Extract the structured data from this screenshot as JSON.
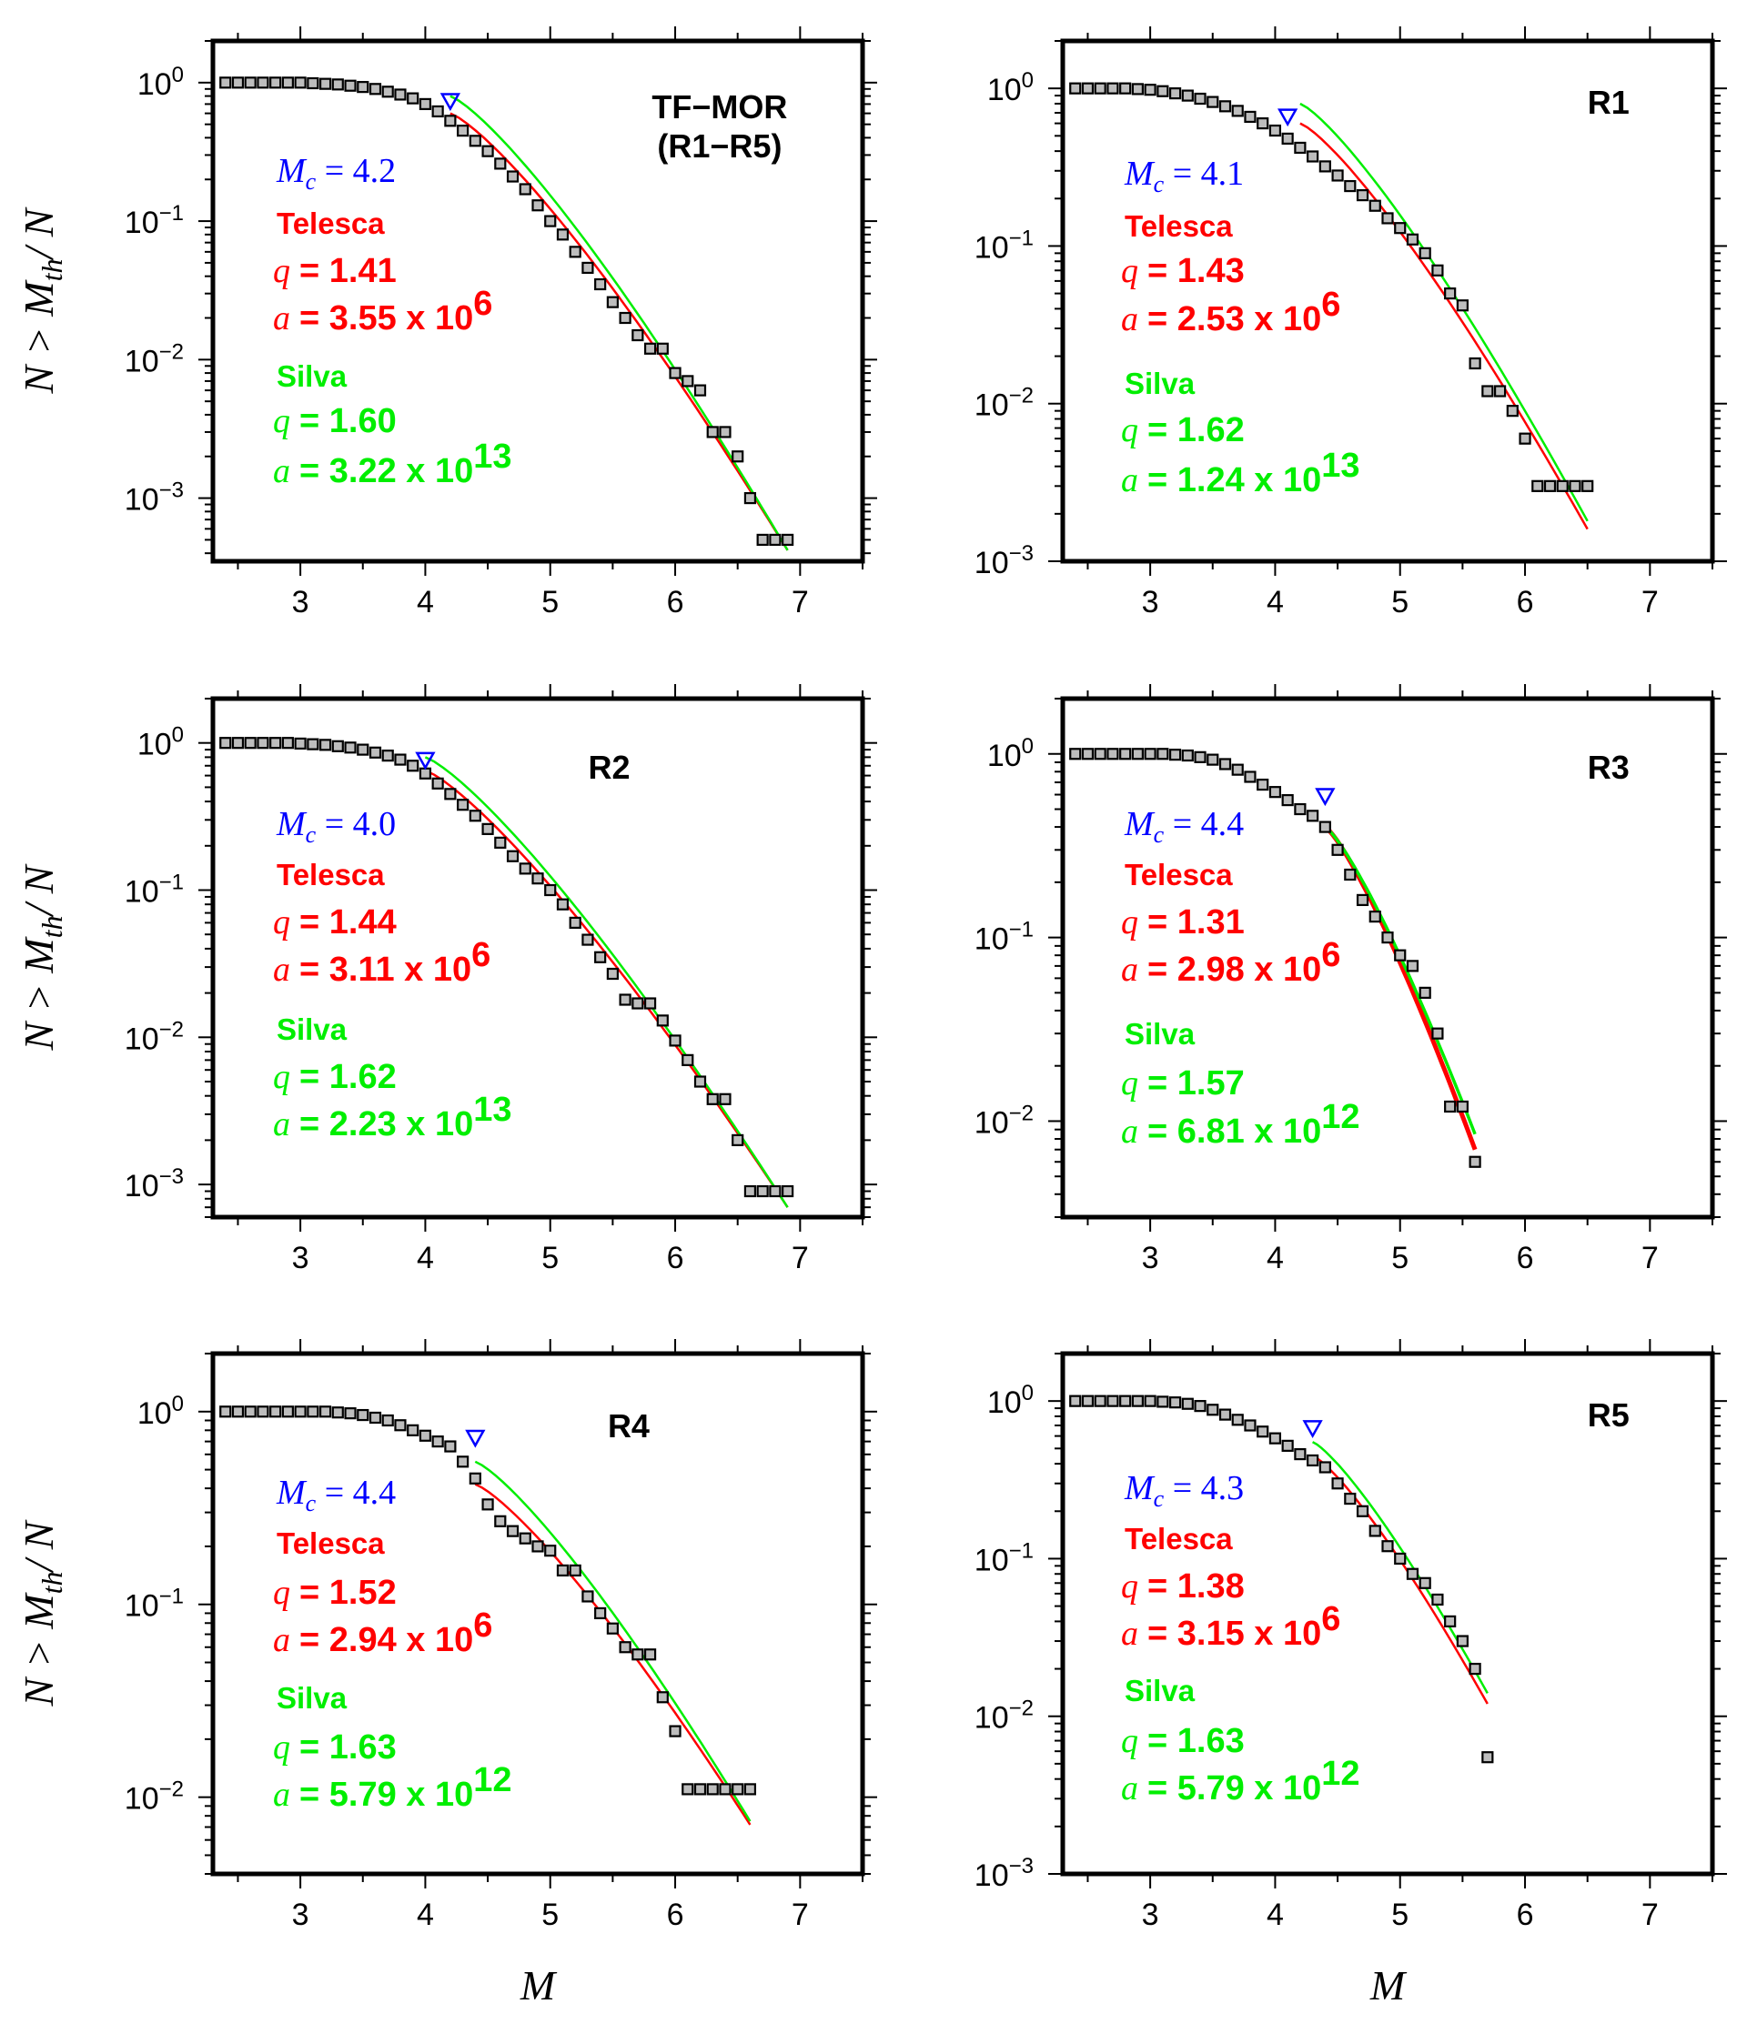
{
  "axis_labels": {
    "ylabel": "N > M_th / N",
    "y_parts": [
      "N > M",
      "th",
      "/ N"
    ],
    "xlabel": "M"
  },
  "colors": {
    "data": "#000000",
    "mc": "#0000ff",
    "telesca": "#ff0000",
    "silva": "#00ee00",
    "marker_fill": "#bdbdbd"
  },
  "chart_data": [
    {
      "type": "scatter",
      "title": "TF−MOR",
      "subtitle": "(R1−R5)",
      "xlim": [
        2.3,
        7.5
      ],
      "ylim": [
        0.00035,
        2.0
      ],
      "yscale": "log",
      "yticks": [
        0.001,
        0.01,
        0.1,
        1
      ],
      "x": [
        2.4,
        2.5,
        2.6,
        2.7,
        2.8,
        2.9,
        3.0,
        3.1,
        3.2,
        3.3,
        3.4,
        3.5,
        3.6,
        3.7,
        3.8,
        3.9,
        4.0,
        4.1,
        4.2,
        4.3,
        4.4,
        4.5,
        4.6,
        4.7,
        4.8,
        4.9,
        5.0,
        5.1,
        5.2,
        5.3,
        5.4,
        5.5,
        5.6,
        5.7,
        5.8,
        5.9,
        6.0,
        6.1,
        6.2,
        6.3,
        6.4,
        6.5,
        6.6,
        6.7,
        6.8,
        6.9
      ],
      "y": [
        1.0,
        1.0,
        1.0,
        1.0,
        1.0,
        1.0,
        1.0,
        0.99,
        0.98,
        0.97,
        0.95,
        0.93,
        0.9,
        0.86,
        0.82,
        0.77,
        0.7,
        0.62,
        0.53,
        0.45,
        0.38,
        0.32,
        0.26,
        0.21,
        0.17,
        0.13,
        0.1,
        0.08,
        0.06,
        0.046,
        0.035,
        0.026,
        0.02,
        0.015,
        0.012,
        0.012,
        0.008,
        0.007,
        0.006,
        0.003,
        0.003,
        0.002,
        0.001,
        0.0005,
        0.0005,
        0.0005
      ],
      "mc": {
        "label": "M",
        "sub": "c",
        "text": " = 4.2",
        "x": 4.2,
        "y": 0.72
      },
      "telesca": {
        "label": "Telesca",
        "q": "= 1.41",
        "a": "= 3.55 x 10",
        "exp": "6",
        "x0": 4.2,
        "y0": 0.6,
        "x1": 6.9,
        "y1": 0.00042
      },
      "silva": {
        "label": "Silva",
        "q": "= 1.60",
        "a": "= 3.22 x 10",
        "exp": "13",
        "x0": 4.2,
        "y0": 0.8,
        "x1": 6.9,
        "y1": 0.00042
      }
    },
    {
      "type": "scatter",
      "title": "R1",
      "subtitle": "",
      "xlim": [
        2.3,
        7.5
      ],
      "ylim": [
        0.001,
        2.0
      ],
      "yscale": "log",
      "yticks": [
        0.001,
        0.01,
        0.1,
        1
      ],
      "x": [
        2.4,
        2.5,
        2.6,
        2.7,
        2.8,
        2.9,
        3.0,
        3.1,
        3.2,
        3.3,
        3.4,
        3.5,
        3.6,
        3.7,
        3.8,
        3.9,
        4.0,
        4.1,
        4.2,
        4.3,
        4.4,
        4.5,
        4.6,
        4.7,
        4.8,
        4.9,
        5.0,
        5.1,
        5.2,
        5.3,
        5.4,
        5.5,
        5.6,
        5.7,
        5.8,
        5.9,
        6.0,
        6.1,
        6.2,
        6.3,
        6.4,
        6.5
      ],
      "y": [
        1.0,
        1.0,
        1.0,
        1.0,
        1.0,
        0.99,
        0.98,
        0.96,
        0.93,
        0.9,
        0.86,
        0.82,
        0.77,
        0.72,
        0.66,
        0.6,
        0.54,
        0.48,
        0.42,
        0.37,
        0.32,
        0.28,
        0.24,
        0.21,
        0.18,
        0.15,
        0.13,
        0.11,
        0.09,
        0.07,
        0.05,
        0.042,
        0.018,
        0.012,
        0.012,
        0.009,
        0.006,
        0.003,
        0.003,
        0.003,
        0.003,
        0.003
      ],
      "mc": {
        "label": "M",
        "sub": "c",
        "text": " = 4.1",
        "x": 4.1,
        "y": 0.65
      },
      "telesca": {
        "label": "Telesca",
        "q": "= 1.43",
        "a": "= 2.53 x 10",
        "exp": "6",
        "x0": 4.2,
        "y0": 0.6,
        "x1": 6.5,
        "y1": 0.0016
      },
      "silva": {
        "label": "Silva",
        "q": "= 1.62",
        "a": "= 1.24 x 10",
        "exp": "13",
        "x0": 4.2,
        "y0": 0.8,
        "x1": 6.5,
        "y1": 0.0018
      }
    },
    {
      "type": "scatter",
      "title": "R2",
      "subtitle": "",
      "xlim": [
        2.3,
        7.5
      ],
      "ylim": [
        0.0006,
        2.0
      ],
      "yscale": "log",
      "yticks": [
        0.001,
        0.01,
        0.1,
        1
      ],
      "x": [
        2.4,
        2.5,
        2.6,
        2.7,
        2.8,
        2.9,
        3.0,
        3.1,
        3.2,
        3.3,
        3.4,
        3.5,
        3.6,
        3.7,
        3.8,
        3.9,
        4.0,
        4.1,
        4.2,
        4.3,
        4.4,
        4.5,
        4.6,
        4.7,
        4.8,
        4.9,
        5.0,
        5.1,
        5.2,
        5.3,
        5.4,
        5.5,
        5.6,
        5.7,
        5.8,
        5.9,
        6.0,
        6.1,
        6.2,
        6.3,
        6.4,
        6.5,
        6.6,
        6.7,
        6.8,
        6.9
      ],
      "y": [
        1.0,
        1.0,
        1.0,
        1.0,
        1.0,
        1.0,
        0.99,
        0.98,
        0.97,
        0.95,
        0.93,
        0.9,
        0.86,
        0.82,
        0.77,
        0.7,
        0.62,
        0.53,
        0.45,
        0.38,
        0.32,
        0.26,
        0.21,
        0.17,
        0.14,
        0.12,
        0.1,
        0.08,
        0.06,
        0.046,
        0.035,
        0.027,
        0.018,
        0.017,
        0.017,
        0.013,
        0.0095,
        0.007,
        0.005,
        0.0038,
        0.0038,
        0.002,
        0.0009,
        0.0009,
        0.0009,
        0.0009
      ],
      "mc": {
        "label": "M",
        "sub": "c",
        "text": " = 4.0",
        "x": 4.0,
        "y": 0.75
      },
      "telesca": {
        "label": "Telesca",
        "q": "= 1.44",
        "a": "= 3.11 x 10",
        "exp": "6",
        "x0": 4.0,
        "y0": 0.65,
        "x1": 6.9,
        "y1": 0.0007
      },
      "silva": {
        "label": "Silva",
        "q": "= 1.62",
        "a": "= 2.23 x 10",
        "exp": "13",
        "x0": 4.0,
        "y0": 0.8,
        "x1": 6.9,
        "y1": 0.0007
      }
    },
    {
      "type": "scatter",
      "title": "R3",
      "subtitle": "",
      "xlim": [
        2.3,
        7.5
      ],
      "ylim": [
        0.003,
        2.0
      ],
      "yscale": "log",
      "yticks": [
        0.01,
        0.1,
        1
      ],
      "x": [
        2.4,
        2.5,
        2.6,
        2.7,
        2.8,
        2.9,
        3.0,
        3.1,
        3.2,
        3.3,
        3.4,
        3.5,
        3.6,
        3.7,
        3.8,
        3.9,
        4.0,
        4.1,
        4.2,
        4.3,
        4.4,
        4.5,
        4.6,
        4.7,
        4.8,
        4.9,
        5.0,
        5.1,
        5.2,
        5.3,
        5.4,
        5.5,
        5.6
      ],
      "y": [
        1.0,
        1.0,
        1.0,
        1.0,
        1.0,
        1.0,
        1.0,
        1.0,
        0.99,
        0.98,
        0.96,
        0.93,
        0.88,
        0.82,
        0.75,
        0.68,
        0.62,
        0.56,
        0.5,
        0.46,
        0.4,
        0.3,
        0.22,
        0.16,
        0.13,
        0.1,
        0.08,
        0.07,
        0.05,
        0.03,
        0.012,
        0.012,
        0.006
      ],
      "mc": {
        "label": "M",
        "sub": "c",
        "text": " = 4.4",
        "x": 4.4,
        "y": 0.58
      },
      "telesca": {
        "label": "Telesca",
        "q": "= 1.31",
        "a": "= 2.98 x 10",
        "exp": "6",
        "x0": 4.4,
        "y0": 0.4,
        "x1": 5.6,
        "y1": 0.007
      },
      "silva": {
        "label": "Silva",
        "q": "= 1.57",
        "a": "= 6.81 x 10",
        "exp": "12",
        "x0": 4.4,
        "y0": 0.4,
        "x1": 5.6,
        "y1": 0.0085
      }
    },
    {
      "type": "scatter",
      "title": "R4",
      "subtitle": "",
      "xlim": [
        2.3,
        7.5
      ],
      "ylim": [
        0.004,
        2.0
      ],
      "yscale": "log",
      "yticks": [
        0.01,
        0.1,
        1
      ],
      "x": [
        2.4,
        2.5,
        2.6,
        2.7,
        2.8,
        2.9,
        3.0,
        3.1,
        3.2,
        3.3,
        3.4,
        3.5,
        3.6,
        3.7,
        3.8,
        3.9,
        4.0,
        4.1,
        4.2,
        4.3,
        4.4,
        4.5,
        4.6,
        4.7,
        4.8,
        4.9,
        5.0,
        5.1,
        5.2,
        5.3,
        5.4,
        5.5,
        5.6,
        5.7,
        5.8,
        5.9,
        6.0,
        6.1,
        6.2,
        6.3,
        6.4,
        6.5,
        6.6
      ],
      "y": [
        1.0,
        1.0,
        1.0,
        1.0,
        1.0,
        1.0,
        1.0,
        1.0,
        1.0,
        0.99,
        0.98,
        0.96,
        0.93,
        0.9,
        0.85,
        0.8,
        0.75,
        0.7,
        0.66,
        0.55,
        0.45,
        0.33,
        0.27,
        0.24,
        0.22,
        0.2,
        0.19,
        0.15,
        0.15,
        0.11,
        0.09,
        0.075,
        0.06,
        0.055,
        0.055,
        0.033,
        0.022,
        0.011,
        0.011,
        0.011,
        0.011,
        0.011,
        0.011
      ],
      "mc": {
        "label": "M",
        "sub": "c",
        "text": " = 4.4",
        "x": 4.4,
        "y": 0.72
      },
      "telesca": {
        "label": "Telesca",
        "q": "= 1.52",
        "a": "= 2.94 x 10",
        "exp": "6",
        "x0": 4.4,
        "y0": 0.42,
        "x1": 6.6,
        "y1": 0.0072
      },
      "silva": {
        "label": "Silva",
        "q": "= 1.63",
        "a": "= 5.79 x 10",
        "exp": "12",
        "x0": 4.4,
        "y0": 0.55,
        "x1": 6.6,
        "y1": 0.0075
      }
    },
    {
      "type": "scatter",
      "title": "R5",
      "subtitle": "",
      "xlim": [
        2.3,
        7.5
      ],
      "ylim": [
        0.001,
        2.0
      ],
      "yscale": "log",
      "yticks": [
        0.001,
        0.01,
        0.1,
        1
      ],
      "x": [
        2.4,
        2.5,
        2.6,
        2.7,
        2.8,
        2.9,
        3.0,
        3.1,
        3.2,
        3.3,
        3.4,
        3.5,
        3.6,
        3.7,
        3.8,
        3.9,
        4.0,
        4.1,
        4.2,
        4.3,
        4.4,
        4.5,
        4.6,
        4.7,
        4.8,
        4.9,
        5.0,
        5.1,
        5.2,
        5.3,
        5.4,
        5.5,
        5.6,
        5.7
      ],
      "y": [
        1.0,
        1.0,
        1.0,
        1.0,
        1.0,
        1.0,
        1.0,
        0.99,
        0.98,
        0.96,
        0.93,
        0.88,
        0.82,
        0.76,
        0.7,
        0.64,
        0.58,
        0.52,
        0.46,
        0.42,
        0.38,
        0.3,
        0.24,
        0.2,
        0.15,
        0.12,
        0.1,
        0.08,
        0.07,
        0.055,
        0.04,
        0.03,
        0.02,
        0.0055
      ],
      "mc": {
        "label": "M",
        "sub": "c",
        "text": " = 4.3",
        "x": 4.3,
        "y": 0.66
      },
      "telesca": {
        "label": "Telesca",
        "q": "= 1.38",
        "a": "= 3.15 x 10",
        "exp": "6",
        "x0": 4.3,
        "y0": 0.45,
        "x1": 5.7,
        "y1": 0.012
      },
      "silva": {
        "label": "Silva",
        "q": "= 1.63",
        "a": "= 5.79 x 10",
        "exp": "12",
        "x0": 4.3,
        "y0": 0.55,
        "x1": 5.7,
        "y1": 0.014
      }
    }
  ]
}
